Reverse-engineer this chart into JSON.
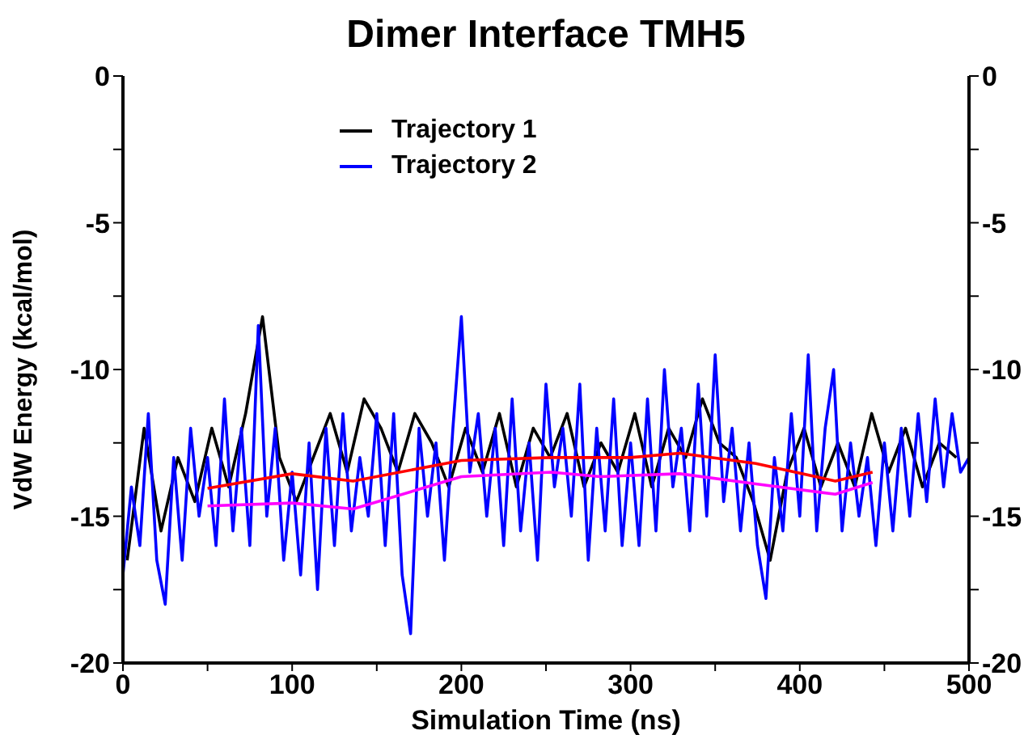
{
  "chart_data": {
    "type": "line",
    "title": "Dimer Interface TMH5",
    "xlabel": "Simulation Time (ns)",
    "ylabel": "VdW Energy (kcal/mol)",
    "xlim": [
      0,
      500
    ],
    "xticks": [
      0,
      {
        "value": 50,
        "label": null
      },
      100,
      {
        "value": 150,
        "label": null
      },
      200,
      {
        "value": 250,
        "label": null
      },
      300,
      {
        "value": 350,
        "label": null
      },
      400,
      {
        "value": 450,
        "label": null
      },
      500
    ],
    "ylim": [
      -20,
      0
    ],
    "yticks": [
      -20,
      {
        "value": -17.5,
        "label": null
      },
      -15,
      {
        "value": -12.5,
        "label": null
      },
      -10,
      {
        "value": -7.5,
        "label": null
      },
      -5,
      {
        "value": -2.5,
        "label": null
      },
      0
    ],
    "y2lim": [
      -20,
      0
    ],
    "y2ticks": [
      -20,
      {
        "value": -17.5,
        "label": null
      },
      -15,
      {
        "value": -12.5,
        "label": null
      },
      -10,
      {
        "value": -7.5,
        "label": null
      },
      -5,
      {
        "value": -2.5,
        "label": null
      },
      0
    ],
    "legend": "top",
    "marker": "none",
    "line_style": "solid",
    "series": [
      {
        "name": "Trajectory 1",
        "color": "#000000",
        "x": [
          2.5,
          12.5,
          22.5,
          32.5,
          42.5,
          52.5,
          62.5,
          72.5,
          82.5,
          92.5,
          102.5,
          112.5,
          122.5,
          132.5,
          142.5,
          152.5,
          162.5,
          172.5,
          182.5,
          192.5,
          202.5,
          212.5,
          222.5,
          232.5,
          242.5,
          252.5,
          262.5,
          272.5,
          282.5,
          292.5,
          302.5,
          312.5,
          322.5,
          332.5,
          342.5,
          352.5,
          362.5,
          372.5,
          382.5,
          392.5,
          402.5,
          412.5,
          422.5,
          432.5,
          442.5,
          452.5,
          462.5,
          472.5,
          482.5,
          492.5
        ],
        "values": [
          -16.5,
          -12,
          -15.5,
          -13,
          -14.5,
          -12,
          -14,
          -11.5,
          -8.2,
          -13,
          -14.5,
          -13,
          -11.5,
          -13.5,
          -11,
          -12,
          -13.5,
          -11.5,
          -12.5,
          -14,
          -12,
          -13.5,
          -11.5,
          -14,
          -12,
          -13,
          -11.5,
          -14,
          -12.5,
          -13.5,
          -11.5,
          -14,
          -12,
          -13,
          -11,
          -12.5,
          -13,
          -14.5,
          -16.5,
          -13.5,
          -12,
          -14,
          -12.5,
          -14,
          -11.5,
          -13.5,
          -12,
          -14,
          -12.5,
          -13
        ]
      },
      {
        "name": "Trajectory 2",
        "color": "#0000ff",
        "x": [
          0,
          5,
          10,
          15,
          20,
          25,
          30,
          35,
          40,
          45,
          50,
          55,
          60,
          65,
          70,
          75,
          80,
          85,
          90,
          95,
          100,
          105,
          110,
          115,
          120,
          125,
          130,
          135,
          140,
          145,
          150,
          155,
          160,
          165,
          170,
          175,
          180,
          185,
          190,
          195,
          200,
          205,
          210,
          215,
          220,
          225,
          230,
          235,
          240,
          245,
          250,
          255,
          260,
          265,
          270,
          275,
          280,
          285,
          290,
          295,
          300,
          305,
          310,
          315,
          320,
          325,
          330,
          335,
          340,
          345,
          350,
          355,
          360,
          365,
          370,
          375,
          380,
          385,
          390,
          395,
          400,
          405,
          410,
          415,
          420,
          425,
          430,
          435,
          440,
          445,
          450,
          455,
          460,
          465,
          470,
          475,
          480,
          485,
          490,
          495,
          500
        ],
        "values": [
          -17,
          -14,
          -16,
          -11.5,
          -16.5,
          -18,
          -13,
          -16.5,
          -12,
          -15,
          -13,
          -16,
          -11,
          -15.5,
          -12,
          -16,
          -8.5,
          -15,
          -12,
          -16.5,
          -13.5,
          -17,
          -12.5,
          -17.5,
          -12,
          -16,
          -11.5,
          -15.5,
          -13,
          -15,
          -11.5,
          -16,
          -11.5,
          -17,
          -19,
          -12,
          -15,
          -12.5,
          -16.5,
          -12,
          -8.2,
          -13.5,
          -11.5,
          -15,
          -12,
          -16,
          -11,
          -15.5,
          -12.5,
          -16.5,
          -10.5,
          -14,
          -12,
          -15,
          -10.5,
          -16.5,
          -12,
          -15.5,
          -11,
          -16,
          -12.5,
          -16,
          -11,
          -15.5,
          -10,
          -14,
          -12,
          -15.5,
          -10.5,
          -15,
          -9.5,
          -14.5,
          -12,
          -15.5,
          -12.5,
          -16,
          -17.8,
          -13,
          -15.5,
          -11.5,
          -15,
          -9.5,
          -15.5,
          -12,
          -10,
          -15.5,
          -12.5,
          -15,
          -13,
          -16,
          -12.5,
          -15.5,
          -12,
          -15,
          -11.5,
          -14.5,
          -11,
          -14,
          -11.5,
          -13.5,
          -13
        ]
      },
      {
        "color": "#ff0000",
        "x": [
          50,
          100,
          136,
          200,
          253,
          300,
          329,
          374,
          421,
          443
        ],
        "values": [
          -14.05,
          -13.55,
          -13.8,
          -13.1,
          -13,
          -13,
          -12.85,
          -13.2,
          -13.8,
          -13.5
        ]
      },
      {
        "color": "#ff00ff",
        "x": [
          50,
          100,
          136,
          200,
          253,
          282,
          329,
          374,
          421,
          443
        ],
        "values": [
          -14.65,
          -14.55,
          -14.75,
          -13.65,
          -13.5,
          -13.65,
          -13.55,
          -13.9,
          -14.25,
          -13.85
        ]
      }
    ]
  }
}
